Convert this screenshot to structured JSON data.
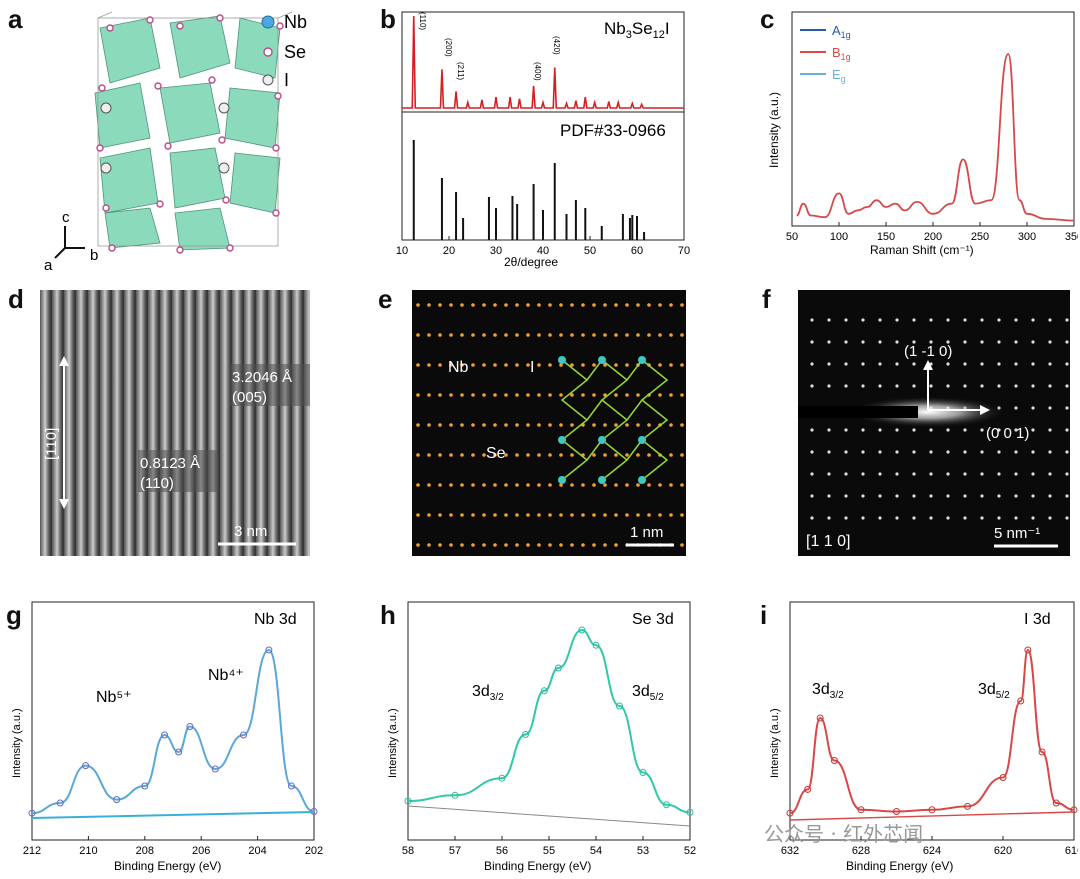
{
  "panel_labels": [
    "a",
    "b",
    "c",
    "d",
    "e",
    "f",
    "g",
    "h",
    "i"
  ],
  "a": {
    "legend": [
      {
        "symbol": "Nb",
        "color": "#4aa8e0"
      },
      {
        "symbol": "Se",
        "color": "#e07ab0"
      },
      {
        "symbol": "I",
        "color": "#f0f0f0"
      }
    ],
    "axes": {
      "c": "c",
      "a": "a",
      "b": "b"
    }
  },
  "b": {
    "top_label_main": "Nb",
    "top_label_sub1": "3",
    "top_label_mid": "Se",
    "top_label_sub2": "12",
    "top_label_end": "I",
    "ref_label": "PDF#33-0966",
    "xlabel": "2θ/degree",
    "xticks": [
      "10",
      "20",
      "30",
      "40",
      "50",
      "60",
      "70"
    ],
    "peak_labels": [
      "(110)",
      "(200)",
      "(211)",
      "(400)",
      "(420)"
    ]
  },
  "c": {
    "legend": [
      {
        "label": "A",
        "sub": "1g",
        "color": "#2a5aa8"
      },
      {
        "label": "B",
        "sub": "1g",
        "color": "#e04848"
      },
      {
        "label": "E",
        "sub": "g",
        "color": "#6ab0d8"
      }
    ],
    "xlabel": "Raman Shift (cm⁻¹)",
    "ylabel": "Intensity (a.u.)",
    "xticks": [
      "50",
      "100",
      "150",
      "200",
      "250",
      "300",
      "350"
    ]
  },
  "d": {
    "dim1_value": "3.2046 Å",
    "dim1_plane": "(005)",
    "dim2_value": "0.8123 Å",
    "dim2_plane": "(110)",
    "axis_label": "[110]",
    "scale": "3 nm"
  },
  "e": {
    "labels": [
      "Nb",
      "I",
      "Se"
    ],
    "scale": "1 nm"
  },
  "f": {
    "vec1": "(1 -1 0)",
    "vec2": "(0 0 1)",
    "zone": "[1 1 0]",
    "scale": "5 nm⁻¹"
  },
  "g": {
    "title": "Nb 3d",
    "ann1": "Nb⁵⁺",
    "ann2": "Nb⁴⁺",
    "xlabel": "Binding Energy (eV)",
    "ylabel": "Intensity (a.u.)",
    "xticks": [
      "212",
      "210",
      "208",
      "206",
      "204",
      "202"
    ]
  },
  "h": {
    "title": "Se 3d",
    "ann1_main": "3d",
    "ann1_sub": "3/2",
    "ann2_main": "3d",
    "ann2_sub": "5/2",
    "xlabel": "Binding Energy (eV)",
    "ylabel": "Intensity (a.u.)",
    "xticks": [
      "58",
      "57",
      "56",
      "55",
      "54",
      "53",
      "52"
    ]
  },
  "i": {
    "title": "I 3d",
    "ann1_main": "3d",
    "ann1_sub": "3/2",
    "ann2_main": "3d",
    "ann2_sub": "5/2",
    "xlabel": "Binding Energy (eV)",
    "ylabel": "Intensity (a.u.)",
    "xticks": [
      "632",
      "628",
      "624",
      "620",
      "616"
    ]
  },
  "watermark": "公众号 · 红外芯闻",
  "chart_data": [
    {
      "type": "bar",
      "panel": "b-reference",
      "xlabel": "2θ/degree",
      "xlim": [
        10,
        70
      ],
      "x": [
        12.5,
        18.5,
        21.5,
        23,
        28.5,
        30,
        33.5,
        34.5,
        38,
        40,
        42.5,
        45,
        47,
        49,
        52.5,
        57,
        58.5,
        59,
        60,
        61.5
      ],
      "values": [
        100,
        62,
        48,
        22,
        43,
        32,
        44,
        36,
        56,
        30,
        77,
        26,
        40,
        32,
        14,
        26,
        22,
        25,
        24,
        8
      ]
    },
    {
      "type": "line",
      "panel": "b-measured",
      "xlim": [
        10,
        70
      ],
      "x": [
        12.5,
        18.5,
        21.5,
        24,
        27,
        30,
        33,
        35,
        38,
        40,
        42.5,
        45,
        47,
        49,
        51,
        54,
        56,
        59,
        61
      ],
      "values": [
        100,
        42,
        18,
        6,
        9,
        12,
        12,
        10,
        24,
        6,
        44,
        5,
        8,
        12,
        6,
        7,
        6,
        5,
        4
      ]
    },
    {
      "type": "line",
      "panel": "c",
      "xlabel": "Raman Shift (cm⁻¹)",
      "ylabel": "Intensity (a.u.)",
      "xlim": [
        50,
        350
      ],
      "x": [
        55,
        62,
        70,
        85,
        100,
        110,
        120,
        130,
        140,
        150,
        160,
        170,
        183,
        200,
        220,
        232,
        245,
        262,
        280,
        292,
        300,
        320,
        350
      ],
      "values": [
        5,
        12,
        5,
        4,
        18,
        6,
        8,
        10,
        14,
        10,
        12,
        8,
        13,
        6,
        12,
        38,
        12,
        14,
        100,
        14,
        6,
        3,
        2
      ]
    },
    {
      "type": "line",
      "panel": "g",
      "xlabel": "Binding Energy (eV)",
      "xlim": [
        212,
        202
      ],
      "x": [
        212,
        211,
        210.1,
        209,
        208,
        207.3,
        206.8,
        206.4,
        205.5,
        204.5,
        203.6,
        202.8,
        202
      ],
      "values": [
        4,
        10,
        32,
        12,
        20,
        50,
        40,
        55,
        30,
        50,
        100,
        20,
        5
      ]
    },
    {
      "type": "line",
      "panel": "h",
      "xlabel": "Binding Energy (eV)",
      "xlim": [
        58,
        52
      ],
      "x": [
        58,
        57,
        56,
        55.5,
        55.1,
        54.8,
        54.3,
        54,
        53.5,
        53,
        52.5,
        52
      ],
      "values": [
        10,
        13,
        22,
        45,
        68,
        80,
        100,
        92,
        60,
        25,
        8,
        4
      ]
    },
    {
      "type": "line",
      "panel": "i",
      "xlabel": "Binding Energy (eV)",
      "xlim": [
        632,
        616
      ],
      "x": [
        632,
        631,
        630.3,
        629.5,
        628,
        626,
        624,
        622,
        620,
        619,
        618.6,
        617.8,
        617,
        616
      ],
      "values": [
        4,
        18,
        60,
        35,
        6,
        5,
        6,
        8,
        25,
        70,
        100,
        40,
        10,
        6
      ]
    }
  ]
}
